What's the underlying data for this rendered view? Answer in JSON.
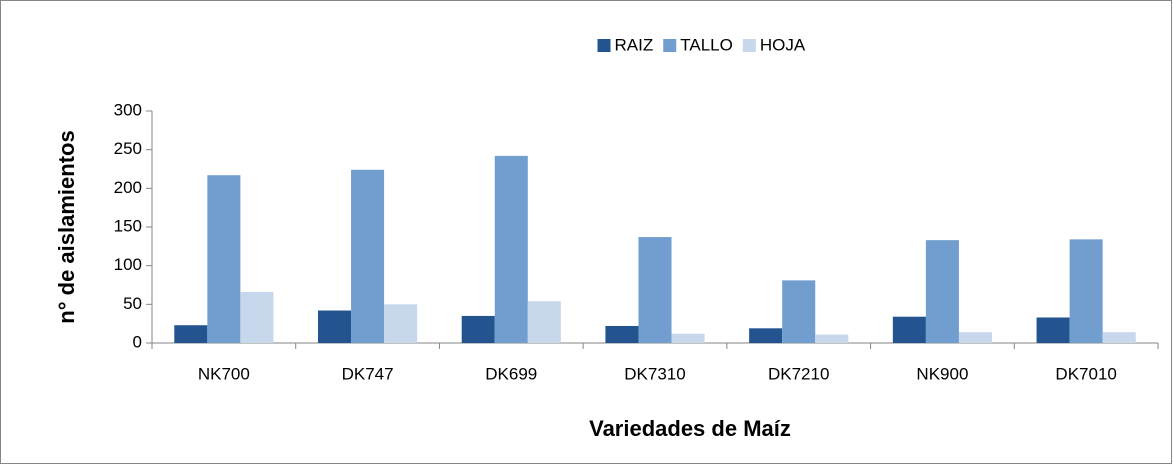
{
  "chart_data": {
    "type": "bar",
    "x_label": "Variedades de Maíz",
    "y_label": "n° de aislamientos",
    "categories": [
      "NK700",
      "DK747",
      "DK699",
      "DK7310",
      "DK7210",
      "NK900",
      "DK7010"
    ],
    "series": [
      {
        "name": "RAIZ",
        "color": "#24548f",
        "values": [
          23,
          42,
          35,
          22,
          19,
          34,
          33
        ]
      },
      {
        "name": "TALLO",
        "color": "#719ecf",
        "values": [
          217,
          224,
          242,
          137,
          81,
          133,
          134
        ]
      },
      {
        "name": "HOJA",
        "color": "#c7d7ec",
        "values": [
          66,
          50,
          54,
          12,
          11,
          14,
          14
        ]
      }
    ],
    "ylim": [
      0,
      300
    ],
    "yticks": [
      0,
      50,
      100,
      150,
      200,
      250,
      300
    ],
    "grid": false,
    "legend": "top"
  }
}
